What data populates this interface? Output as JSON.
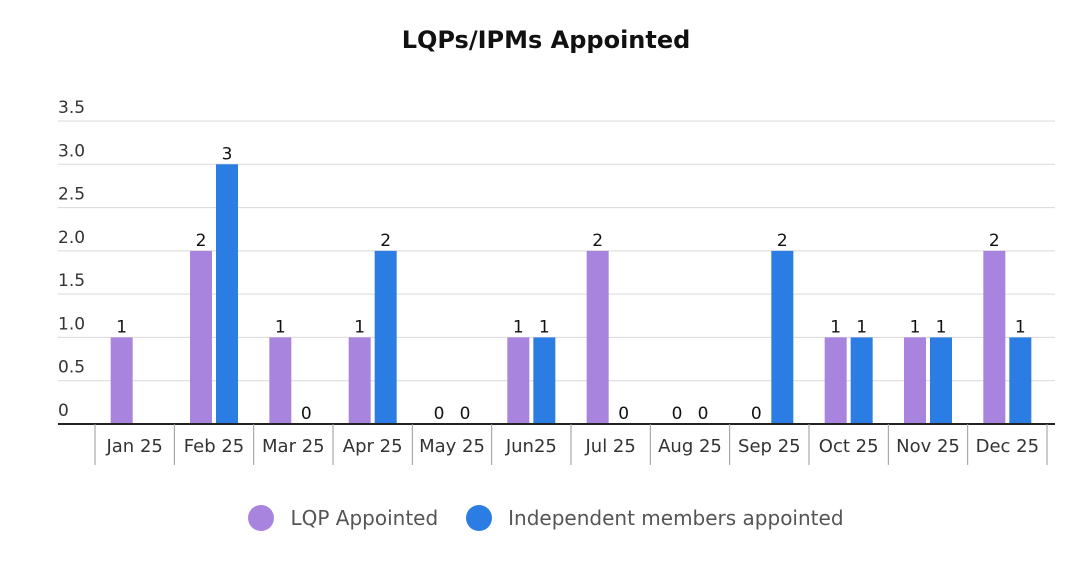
{
  "chart_data": {
    "type": "bar",
    "title": "LQPs/IPMs Appointed",
    "xlabel": "",
    "ylabel": "",
    "categories": [
      "Jan 25",
      "Feb 25",
      "Mar 25",
      "Apr 25",
      "May 25",
      "Jun25",
      "Jul 25",
      "Aug 25",
      "Sep 25",
      "Oct 25",
      "Nov 25",
      "Dec 25"
    ],
    "series": [
      {
        "name": "LQP Appointed",
        "color": "#a884de",
        "values": [
          1,
          2,
          1,
          1,
          0,
          1,
          2,
          0,
          0,
          1,
          1,
          2
        ],
        "labels": [
          "1",
          "2",
          "1",
          "1",
          "0",
          "1",
          "2",
          "0",
          "0",
          "1",
          "1",
          "2"
        ]
      },
      {
        "name": "Independent members appointed",
        "color": "#2b7de3",
        "values": [
          null,
          3,
          0,
          2,
          0,
          1,
          0,
          0,
          2,
          1,
          1,
          1
        ],
        "labels": [
          "",
          "3",
          "0",
          "2",
          "0",
          "1",
          "0",
          "0",
          "2",
          "1",
          "1",
          "1"
        ]
      }
    ],
    "yticks": [
      "0",
      "0.5",
      "1.0",
      "1.5",
      "2.0",
      "2.5",
      "3.0",
      "3.5"
    ],
    "ylim": [
      0,
      3.5
    ],
    "grid": true,
    "legend_position": "bottom"
  }
}
